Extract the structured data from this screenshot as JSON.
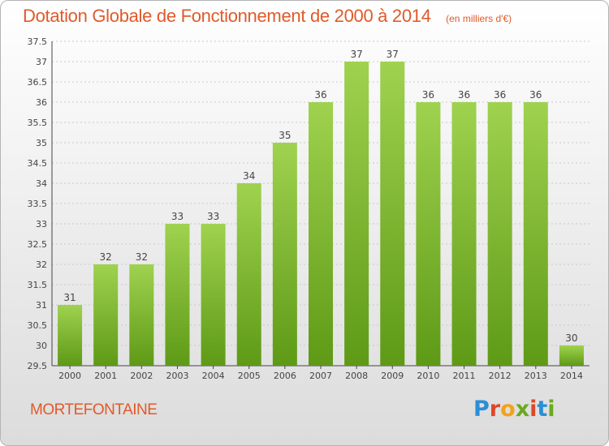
{
  "header": {
    "title": "Dotation Globale de Fonctionnement de 2000 à 2014",
    "unit": "(en milliers d'€)"
  },
  "footer": {
    "commune": "MORTEFONTAINE",
    "brand_letters": [
      "P",
      "r",
      "o",
      "x",
      "i",
      "t",
      "i"
    ],
    "brand_colors": [
      "#2a8fd6",
      "#e0462a",
      "#f2a21a",
      "#6aaa1e",
      "#e0462a",
      "#2a8fd6",
      "#6aaa1e"
    ]
  },
  "colors": {
    "bar_top": "#9fd24f",
    "bar_bottom": "#5e9a16",
    "grid": "#c9c9c9"
  },
  "chart_data": {
    "type": "bar",
    "categories": [
      "2000",
      "2001",
      "2002",
      "2003",
      "2004",
      "2005",
      "2006",
      "2007",
      "2008",
      "2009",
      "2010",
      "2011",
      "2012",
      "2013",
      "2014"
    ],
    "values": [
      31,
      32,
      32,
      33,
      33,
      34,
      35,
      36,
      37,
      37,
      36,
      36,
      36,
      36,
      30
    ],
    "value_labels": [
      "31",
      "32",
      "32",
      "33",
      "33",
      "34",
      "35",
      "36",
      "37",
      "37",
      "36",
      "36",
      "36",
      "36",
      "30"
    ],
    "ylim": [
      29.5,
      37.5
    ],
    "yticks": [
      29.5,
      30,
      30.5,
      31,
      31.5,
      32,
      32.5,
      33,
      33.5,
      34,
      34.5,
      35,
      35.5,
      36,
      36.5,
      37,
      37.5
    ],
    "ytick_labels": [
      "29.5",
      "30",
      "30.5",
      "31",
      "31.5",
      "32",
      "32.5",
      "33",
      "33.5",
      "34",
      "34.5",
      "35",
      "35.5",
      "36",
      "36.5",
      "37",
      "37.5"
    ],
    "grid": true
  }
}
